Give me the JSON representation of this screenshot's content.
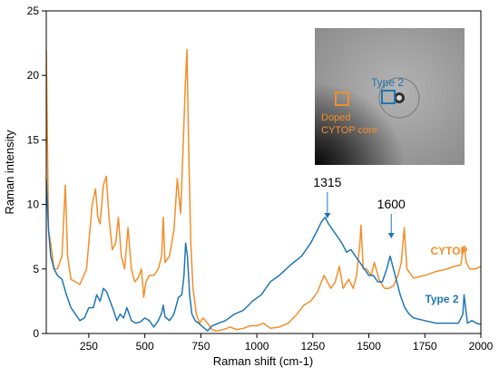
{
  "chart_data": {
    "type": "line",
    "xlabel": "Raman shift (cm-1)",
    "ylabel": "Raman intensity",
    "xlim": [
      60,
      2000
    ],
    "ylim": [
      0,
      25
    ],
    "xticks": [
      250,
      500,
      750,
      1000,
      1250,
      1500,
      1750,
      2000
    ],
    "yticks": [
      0,
      5,
      10,
      15,
      20,
      25
    ],
    "grid": false,
    "colors": {
      "CYTOP": "#f28e2b",
      "Type 2": "#1f77b4"
    },
    "series": [
      {
        "name": "CYTOP",
        "x": [
          60,
          70,
          80,
          95,
          110,
          130,
          145,
          155,
          170,
          190,
          210,
          240,
          265,
          280,
          290,
          300,
          315,
          328,
          340,
          355,
          370,
          382,
          395,
          410,
          425,
          440,
          455,
          470,
          485,
          495,
          505,
          520,
          540,
          560,
          575,
          582,
          590,
          610,
          630,
          645,
          660,
          670,
          680,
          688,
          695,
          705,
          715,
          730,
          745,
          760,
          780,
          800,
          820,
          850,
          880,
          910,
          940,
          970,
          1000,
          1030,
          1060,
          1100,
          1140,
          1180,
          1210,
          1240,
          1270,
          1300,
          1315,
          1330,
          1350,
          1368,
          1385,
          1410,
          1430,
          1445,
          1460,
          1465,
          1475,
          1490,
          1510,
          1525,
          1545,
          1570,
          1590,
          1610,
          1630,
          1645,
          1658,
          1670,
          1700,
          1750,
          1800,
          1850,
          1880,
          1910,
          1925,
          1935,
          1950,
          1975,
          2000
        ],
        "y": [
          22,
          8,
          7,
          5,
          5,
          6,
          11.5,
          6,
          4.2,
          4,
          3.8,
          5,
          10,
          11.2,
          9,
          8.5,
          11.5,
          12.2,
          9,
          6.5,
          7,
          9,
          6,
          5,
          8.2,
          5,
          4,
          4.3,
          5,
          2.8,
          4,
          4.5,
          4.5,
          5,
          6,
          9,
          5.5,
          6,
          8,
          12,
          9.3,
          14,
          19,
          22,
          15,
          7,
          3.5,
          1.5,
          0.8,
          1.2,
          0.8,
          0.3,
          0.2,
          0.3,
          0.5,
          0.3,
          0.4,
          0.6,
          0.6,
          0.8,
          0.4,
          0.5,
          0.8,
          1.5,
          2.2,
          2.5,
          3.2,
          4.5,
          4,
          3.5,
          4,
          5.2,
          3.5,
          4.2,
          3.5,
          4.5,
          7,
          8.4,
          5,
          5,
          4.5,
          5.5,
          4.2,
          3.5,
          3.5,
          3.7,
          4.5,
          5.5,
          8.2,
          5,
          4.3,
          4.5,
          4.8,
          5,
          5.2,
          5.3,
          6.8,
          5.5,
          5,
          5,
          5.2
        ]
      },
      {
        "name": "Type 2",
        "x": [
          60,
          70,
          80,
          95,
          110,
          130,
          150,
          170,
          190,
          210,
          230,
          250,
          270,
          285,
          300,
          315,
          330,
          345,
          360,
          375,
          390,
          405,
          420,
          440,
          460,
          480,
          500,
          520,
          540,
          560,
          575,
          582,
          590,
          610,
          630,
          650,
          665,
          675,
          682,
          690,
          700,
          710,
          725,
          740,
          760,
          780,
          800,
          830,
          860,
          900,
          940,
          980,
          1020,
          1060,
          1100,
          1150,
          1200,
          1240,
          1270,
          1290,
          1305,
          1320,
          1340,
          1360,
          1380,
          1400,
          1420,
          1440,
          1460,
          1480,
          1500,
          1520,
          1540,
          1560,
          1580,
          1595,
          1610,
          1625,
          1640,
          1660,
          1680,
          1700,
          1750,
          1800,
          1850,
          1900,
          1920,
          1925,
          1940,
          1960,
          1980,
          2000
        ],
        "y": [
          12,
          8,
          6,
          5,
          4.5,
          4.2,
          3,
          2,
          1.5,
          1,
          1.2,
          2,
          2,
          3,
          2.5,
          3.5,
          3.2,
          2.5,
          1.8,
          1,
          1.5,
          1.2,
          2,
          1,
          0.8,
          0.9,
          1.2,
          1,
          0.5,
          1,
          1.6,
          2.2,
          1.3,
          1,
          1.5,
          2.8,
          3,
          4.5,
          7,
          6,
          3,
          1.5,
          1,
          0.8,
          0.5,
          0.2,
          0.6,
          0.8,
          1,
          1.5,
          1.8,
          2.5,
          3,
          4,
          4.5,
          5.3,
          6,
          7,
          8,
          8.7,
          9,
          8.5,
          8,
          7.5,
          7,
          6.3,
          6.5,
          6,
          5.5,
          5,
          4.5,
          4.5,
          4,
          4,
          5,
          6,
          5,
          4,
          3,
          2,
          1.5,
          1.2,
          1,
          0.8,
          0.8,
          0.8,
          1.5,
          3,
          0.8,
          1,
          0.8,
          0.7
        ]
      }
    ],
    "annotations": [
      {
        "text": "1315",
        "x": 1315,
        "color": "#1f77b4"
      },
      {
        "text": "1600",
        "x": 1600,
        "color": "#1f77b4"
      }
    ],
    "inset": {
      "labels": [
        {
          "text": "Type 2",
          "color": "#1f77b4"
        },
        {
          "text": "Doped\nCYTOP core",
          "color": "#f28e2b"
        }
      ]
    }
  }
}
